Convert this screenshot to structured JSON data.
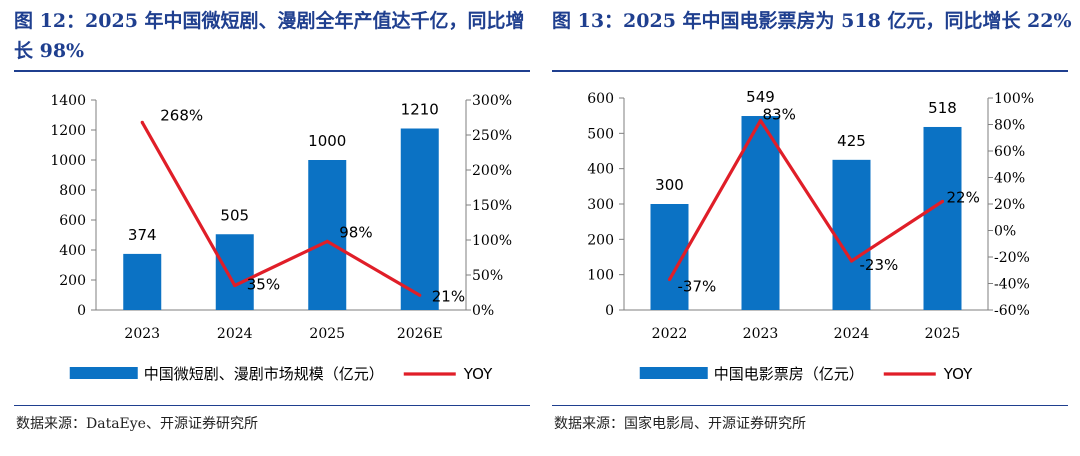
{
  "left_panel": {
    "title": "图 12：2025 年中国微短剧、漫剧全年产值达千亿，同比增长 98%",
    "source": "数据来源：DataEye、开源证券研究所"
  },
  "right_panel": {
    "title": "图 13：2025 年中国电影票房为 518 亿元，同比增长 22%",
    "source": "数据来源：国家电影局、开源证券研究所"
  },
  "colors": {
    "bar": "#0b72c4",
    "line": "#e01e28",
    "title": "#1f3f8f"
  },
  "chart_data": [
    {
      "type": "bar",
      "title": "图 12：2025 年中国微短剧、漫剧全年产值达千亿，同比增长 98%",
      "categories": [
        "2023",
        "2024",
        "2025",
        "2026E"
      ],
      "series": [
        {
          "name": "中国微短剧、漫剧市场规模（亿元）",
          "type": "bar",
          "axis": "left",
          "values": [
            374,
            505,
            1000,
            1210
          ],
          "labels": [
            "374",
            "505",
            "1000",
            "1210"
          ]
        },
        {
          "name": "YOY",
          "type": "line",
          "axis": "right",
          "values": [
            268,
            35,
            98,
            21
          ],
          "labels": [
            "268%",
            "35%",
            "98%",
            "21%"
          ]
        }
      ],
      "ylim": [
        0,
        1400
      ],
      "yticks": [
        "0",
        "200",
        "400",
        "600",
        "800",
        "1000",
        "1200",
        "1400"
      ],
      "y2lim": [
        0,
        300
      ],
      "y2ticks": [
        "0%",
        "50%",
        "100%",
        "150%",
        "200%",
        "250%",
        "300%"
      ],
      "legend": [
        "中国微短剧、漫剧市场规模（亿元）",
        "YOY"
      ],
      "legend_position": "bottom"
    },
    {
      "type": "bar",
      "title": "图 13：2025 年中国电影票房为 518 亿元，同比增长 22%",
      "categories": [
        "2022",
        "2023",
        "2024",
        "2025"
      ],
      "series": [
        {
          "name": "中国电影票房（亿元）",
          "type": "bar",
          "axis": "left",
          "values": [
            300,
            549,
            425,
            518
          ],
          "labels": [
            "300",
            "549",
            "425",
            "518"
          ]
        },
        {
          "name": "YOY",
          "type": "line",
          "axis": "right",
          "values": [
            -37,
            83,
            -23,
            22
          ],
          "labels": [
            "-37%",
            "83%",
            "-23%",
            "22%"
          ]
        }
      ],
      "ylim": [
        0,
        600
      ],
      "yticks": [
        "0",
        "100",
        "200",
        "300",
        "400",
        "500",
        "600"
      ],
      "y2lim": [
        -60,
        100
      ],
      "y2ticks": [
        "-60%",
        "-40%",
        "-20%",
        "0%",
        "20%",
        "40%",
        "60%",
        "80%",
        "100%"
      ],
      "legend": [
        "中国电影票房（亿元）",
        "YOY"
      ],
      "legend_position": "bottom"
    }
  ]
}
